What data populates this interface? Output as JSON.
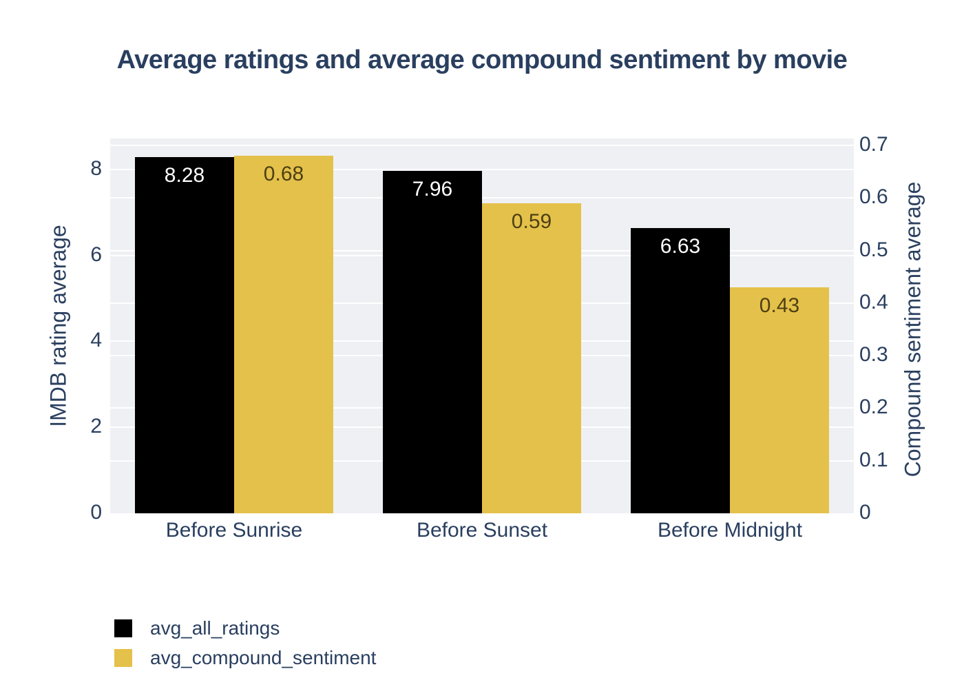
{
  "title": "Average ratings and average compound sentiment by movie",
  "chart_data": {
    "type": "bar",
    "categories": [
      "Before Sunrise",
      "Before Sunset",
      "Before Midnight"
    ],
    "series": [
      {
        "name": "avg_all_ratings",
        "axis": "left",
        "color": "#000000",
        "label_color": "#ffffff",
        "values": [
          8.28,
          7.96,
          6.63
        ],
        "labels": [
          "8.28",
          "7.96",
          "6.63"
        ]
      },
      {
        "name": "avg_compound_sentiment",
        "axis": "right",
        "color": "#e4c14a",
        "label_color": "#4e4013",
        "values": [
          0.68,
          0.59,
          0.43
        ],
        "labels": [
          "0.68",
          "0.59",
          "0.43"
        ]
      }
    ],
    "left_axis": {
      "title": "IMDB rating average",
      "ticks": [
        0,
        2,
        4,
        6,
        8
      ],
      "tick_labels": [
        "0",
        "2",
        "4",
        "6",
        "8"
      ],
      "range": [
        0,
        8.72
      ]
    },
    "right_axis": {
      "title": "Compound sentiment average",
      "ticks": [
        0,
        0.1,
        0.2,
        0.3,
        0.4,
        0.5,
        0.6,
        0.7
      ],
      "tick_labels": [
        "0",
        "0.1",
        "0.2",
        "0.3",
        "0.4",
        "0.5",
        "0.6",
        "0.7"
      ],
      "range": [
        0,
        0.713
      ]
    },
    "grid": true,
    "legend_position": "bottom-left",
    "colors": {
      "plot_background": "#eef0f4",
      "grid_color": "#ffffff",
      "text_color": "#2a3f5f",
      "page_background": "#ffffff"
    }
  },
  "legend": {
    "items": [
      {
        "label": "avg_all_ratings",
        "color": "#000000"
      },
      {
        "label": "avg_compound_sentiment",
        "color": "#e4c14a"
      }
    ]
  }
}
